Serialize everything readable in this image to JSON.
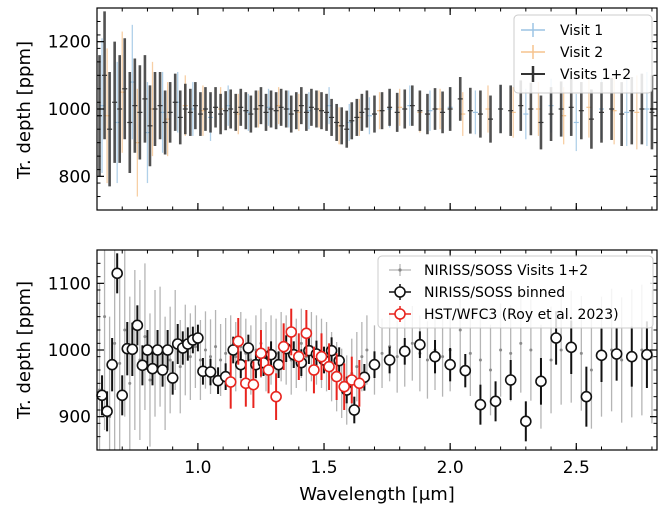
{
  "chart_data": [
    {
      "type": "scatter",
      "panel": "top",
      "ylabel": "Tr. depth [ppm]",
      "xlim": [
        0.6,
        2.82
      ],
      "ylim": [
        700,
        1300
      ],
      "yticks": [
        800,
        1000,
        1200
      ],
      "legend_position": "top-right",
      "series": [
        {
          "name": "Visit 1",
          "color": "#9cc4e4",
          "x": [
            0.62,
            0.68,
            0.74,
            0.8,
            0.86,
            0.92,
            0.98,
            1.05,
            1.12,
            1.2,
            1.28,
            1.36,
            1.44,
            1.52,
            1.6,
            1.68,
            1.76,
            1.84,
            1.92,
            2.0,
            2.1,
            2.2,
            2.3,
            2.4,
            2.5,
            2.6,
            2.7,
            2.78
          ],
          "y": [
            1010,
            960,
            1080,
            930,
            990,
            1020,
            1000,
            975,
            1010,
            990,
            1005,
            1000,
            995,
            1010,
            960,
            980,
            1000,
            1010,
            995,
            1005,
            990,
            1000,
            985,
            1010,
            960,
            1000,
            990,
            1000
          ],
          "err": [
            200,
            180,
            170,
            150,
            120,
            90,
            80,
            70,
            60,
            55,
            55,
            55,
            55,
            55,
            55,
            55,
            55,
            60,
            60,
            60,
            65,
            70,
            75,
            80,
            85,
            90,
            100,
            110
          ]
        },
        {
          "name": "Visit 2",
          "color": "#f5c38e",
          "x": [
            0.64,
            0.7,
            0.76,
            0.82,
            0.88,
            0.95,
            1.02,
            1.09,
            1.16,
            1.24,
            1.32,
            1.4,
            1.48,
            1.56,
            1.64,
            1.72,
            1.8,
            1.88,
            1.96,
            2.05,
            2.15,
            2.25,
            2.35,
            2.45,
            2.55,
            2.65,
            2.74
          ],
          "y": [
            980,
            1050,
            900,
            1000,
            970,
            1010,
            995,
            1000,
            985,
            1000,
            1010,
            990,
            1000,
            950,
            975,
            995,
            1005,
            990,
            1000,
            985,
            1000,
            990,
            1000,
            980,
            1005,
            995,
            990
          ],
          "err": [
            200,
            180,
            160,
            140,
            110,
            90,
            75,
            65,
            60,
            55,
            55,
            55,
            55,
            55,
            55,
            55,
            55,
            60,
            60,
            65,
            70,
            75,
            80,
            85,
            90,
            100,
            110
          ]
        },
        {
          "name": "Visits 1+2",
          "color": "#333333",
          "x": [
            0.61,
            0.63,
            0.65,
            0.67,
            0.69,
            0.71,
            0.73,
            0.75,
            0.77,
            0.79,
            0.81,
            0.83,
            0.85,
            0.87,
            0.89,
            0.91,
            0.93,
            0.95,
            0.97,
            0.99,
            1.01,
            1.03,
            1.05,
            1.07,
            1.09,
            1.11,
            1.13,
            1.15,
            1.17,
            1.19,
            1.21,
            1.23,
            1.25,
            1.27,
            1.29,
            1.31,
            1.33,
            1.35,
            1.37,
            1.39,
            1.41,
            1.43,
            1.45,
            1.47,
            1.49,
            1.51,
            1.53,
            1.55,
            1.57,
            1.59,
            1.61,
            1.63,
            1.65,
            1.67,
            1.7,
            1.73,
            1.76,
            1.79,
            1.82,
            1.85,
            1.88,
            1.91,
            1.94,
            1.97,
            2.0,
            2.04,
            2.08,
            2.12,
            2.16,
            2.2,
            2.24,
            2.28,
            2.32,
            2.36,
            2.4,
            2.44,
            2.48,
            2.52,
            2.56,
            2.6,
            2.64,
            2.68,
            2.72,
            2.76,
            2.8
          ],
          "y": [
            980,
            1100,
            940,
            1020,
            1000,
            1060,
            960,
            1010,
            990,
            1030,
            950,
            1000,
            1010,
            960,
            990,
            1020,
            975,
            1000,
            990,
            1010,
            985,
            1000,
            990,
            1005,
            985,
            995,
            1000,
            990,
            1005,
            995,
            985,
            1000,
            1010,
            990,
            1000,
            995,
            1005,
            1000,
            985,
            995,
            1010,
            990,
            1005,
            1000,
            995,
            990,
            975,
            960,
            950,
            940,
            965,
            975,
            990,
            1000,
            985,
            995,
            1005,
            990,
            1000,
            1010,
            995,
            985,
            1000,
            990,
            1000,
            1030,
            995,
            985,
            970,
            1000,
            995,
            1010,
            1000,
            960,
            985,
            1000,
            1005,
            995,
            970,
            990,
            1000,
            985,
            995,
            1000,
            990
          ],
          "err": [
            180,
            190,
            170,
            180,
            160,
            150,
            150,
            140,
            140,
            130,
            120,
            110,
            100,
            95,
            90,
            85,
            80,
            75,
            70,
            70,
            65,
            65,
            60,
            60,
            60,
            58,
            58,
            55,
            55,
            55,
            55,
            55,
            55,
            55,
            55,
            55,
            55,
            55,
            55,
            55,
            55,
            55,
            55,
            55,
            55,
            55,
            55,
            55,
            55,
            55,
            55,
            55,
            55,
            55,
            55,
            55,
            55,
            58,
            58,
            60,
            60,
            60,
            62,
            62,
            65,
            65,
            68,
            70,
            70,
            72,
            75,
            75,
            78,
            80,
            80,
            82,
            85,
            85,
            88,
            90,
            92,
            95,
            100,
            105,
            110
          ]
        }
      ],
      "legend": [
        "Visit 1",
        "Visit 2",
        "Visits 1+2"
      ]
    },
    {
      "type": "scatter",
      "panel": "bottom",
      "xlabel": "Wavelength [μm]",
      "ylabel": "Tr. depth [ppm]",
      "xlim": [
        0.6,
        2.82
      ],
      "ylim": [
        850,
        1150
      ],
      "xticks": [
        1.0,
        1.5,
        2.0,
        2.5
      ],
      "xtick_labels": [
        "1.0",
        "1.5",
        "2.0",
        "2.5"
      ],
      "yticks": [
        900,
        1000,
        1100
      ],
      "legend_position": "top-right",
      "series": [
        {
          "name": "NIRISS/SOSS Visits 1+2",
          "color": "#b5b5b5",
          "x": [
            0.61,
            0.63,
            0.65,
            0.67,
            0.69,
            0.71,
            0.73,
            0.75,
            0.77,
            0.79,
            0.81,
            0.83,
            0.85,
            0.87,
            0.89,
            0.91,
            0.93,
            0.95,
            0.97,
            0.99,
            1.01,
            1.03,
            1.05,
            1.07,
            1.09,
            1.11,
            1.13,
            1.15,
            1.17,
            1.19,
            1.21,
            1.23,
            1.25,
            1.27,
            1.29,
            1.31,
            1.33,
            1.35,
            1.37,
            1.39,
            1.41,
            1.43,
            1.45,
            1.47,
            1.49,
            1.51,
            1.53,
            1.55,
            1.57,
            1.59,
            1.61,
            1.63,
            1.65,
            1.67,
            1.7,
            1.73,
            1.76,
            1.79,
            1.82,
            1.85,
            1.88,
            1.91,
            1.94,
            1.97,
            2.0,
            2.04,
            2.08,
            2.12,
            2.16,
            2.2,
            2.24,
            2.28,
            2.32,
            2.36,
            2.4,
            2.44,
            2.48,
            2.52,
            2.56,
            2.6,
            2.64,
            2.68,
            2.72,
            2.76,
            2.8
          ],
          "y": [
            940,
            1050,
            900,
            1010,
            980,
            1030,
            950,
            1000,
            985,
            1020,
            955,
            995,
            1005,
            965,
            985,
            1015,
            975,
            1000,
            990,
            1005,
            985,
            1000,
            990,
            1005,
            985,
            995,
            1000,
            990,
            1005,
            995,
            985,
            1000,
            1010,
            990,
            1000,
            995,
            1005,
            1000,
            985,
            995,
            1010,
            990,
            1005,
            1000,
            995,
            990,
            975,
            960,
            950,
            940,
            965,
            975,
            990,
            1000,
            985,
            995,
            1005,
            990,
            1000,
            1010,
            995,
            985,
            1000,
            990,
            1000,
            1030,
            995,
            985,
            970,
            1000,
            995,
            1010,
            1000,
            960,
            985,
            1000,
            1005,
            995,
            970,
            990,
            1000,
            985,
            995,
            1000,
            990
          ],
          "err": [
            160,
            170,
            150,
            160,
            140,
            130,
            130,
            120,
            120,
            110,
            100,
            95,
            90,
            85,
            80,
            75,
            70,
            68,
            65,
            62,
            60,
            58,
            56,
            55,
            54,
            53,
            52,
            52,
            52,
            52,
            52,
            52,
            52,
            52,
            52,
            52,
            52,
            52,
            52,
            52,
            52,
            52,
            52,
            52,
            52,
            52,
            52,
            52,
            52,
            52,
            52,
            52,
            52,
            52,
            52,
            52,
            52,
            54,
            55,
            56,
            57,
            58,
            60,
            60,
            62,
            62,
            64,
            66,
            68,
            70,
            72,
            74,
            76,
            78,
            80,
            82,
            84,
            86,
            88,
            90,
            92,
            94,
            96,
            98,
            100
          ]
        },
        {
          "name": "NIRISS/SOSS binned",
          "color": "#111111",
          "x": [
            0.62,
            0.64,
            0.66,
            0.68,
            0.7,
            0.72,
            0.74,
            0.76,
            0.78,
            0.8,
            0.82,
            0.84,
            0.86,
            0.88,
            0.9,
            0.92,
            0.94,
            0.96,
            0.98,
            1.0,
            1.02,
            1.05,
            1.08,
            1.11,
            1.14,
            1.17,
            1.2,
            1.23,
            1.26,
            1.29,
            1.32,
            1.35,
            1.38,
            1.41,
            1.44,
            1.47,
            1.5,
            1.53,
            1.56,
            1.59,
            1.62,
            1.66,
            1.7,
            1.76,
            1.82,
            1.88,
            1.94,
            2.0,
            2.06,
            2.12,
            2.18,
            2.24,
            2.3,
            2.36,
            2.42,
            2.48,
            2.54,
            2.6,
            2.66,
            2.72,
            2.78
          ],
          "y": [
            932,
            908,
            978,
            1115,
            932,
            1002,
            1001,
            1037,
            977,
            1000,
            972,
            1000,
            970,
            1000,
            958,
            1009,
            1003,
            1009,
            1015,
            1018,
            968,
            967,
            954,
            960,
            1000,
            978,
            1003,
            978,
            981,
            993,
            978,
            1002,
            993,
            981,
            999,
            994,
            985,
            999,
            984,
            940,
            910,
            959,
            978,
            985,
            998,
            1008,
            990,
            978,
            969,
            918,
            923,
            955,
            893,
            953,
            1018,
            1004,
            930,
            992,
            994,
            990,
            993
          ],
          "err": [
            30,
            30,
            40,
            30,
            30,
            40,
            40,
            30,
            30,
            30,
            25,
            30,
            25,
            30,
            25,
            30,
            25,
            25,
            20,
            20,
            20,
            20,
            20,
            20,
            20,
            20,
            20,
            20,
            20,
            20,
            20,
            20,
            20,
            20,
            20,
            20,
            20,
            20,
            20,
            20,
            20,
            20,
            20,
            20,
            20,
            20,
            25,
            25,
            25,
            30,
            30,
            30,
            30,
            35,
            40,
            40,
            45,
            40,
            40,
            45,
            50
          ]
        },
        {
          "name": "HST/WFC3 (Roy et al. 2023)",
          "color": "#e8251f",
          "x": [
            1.13,
            1.16,
            1.19,
            1.22,
            1.25,
            1.28,
            1.31,
            1.34,
            1.37,
            1.4,
            1.43,
            1.46,
            1.49,
            1.52,
            1.55,
            1.58,
            1.61,
            1.64
          ],
          "y": [
            952,
            1013,
            950,
            948,
            995,
            970,
            930,
            1005,
            1027,
            990,
            1025,
            970,
            990,
            975,
            960,
            945,
            955,
            950
          ],
          "err": [
            40,
            35,
            35,
            35,
            35,
            35,
            35,
            35,
            35,
            35,
            35,
            35,
            35,
            35,
            35,
            35,
            35,
            35
          ]
        }
      ],
      "legend": [
        "NIRISS/SOSS Visits 1+2",
        "NIRISS/SOSS binned",
        "HST/WFC3 (Roy et al. 2023)"
      ]
    }
  ]
}
